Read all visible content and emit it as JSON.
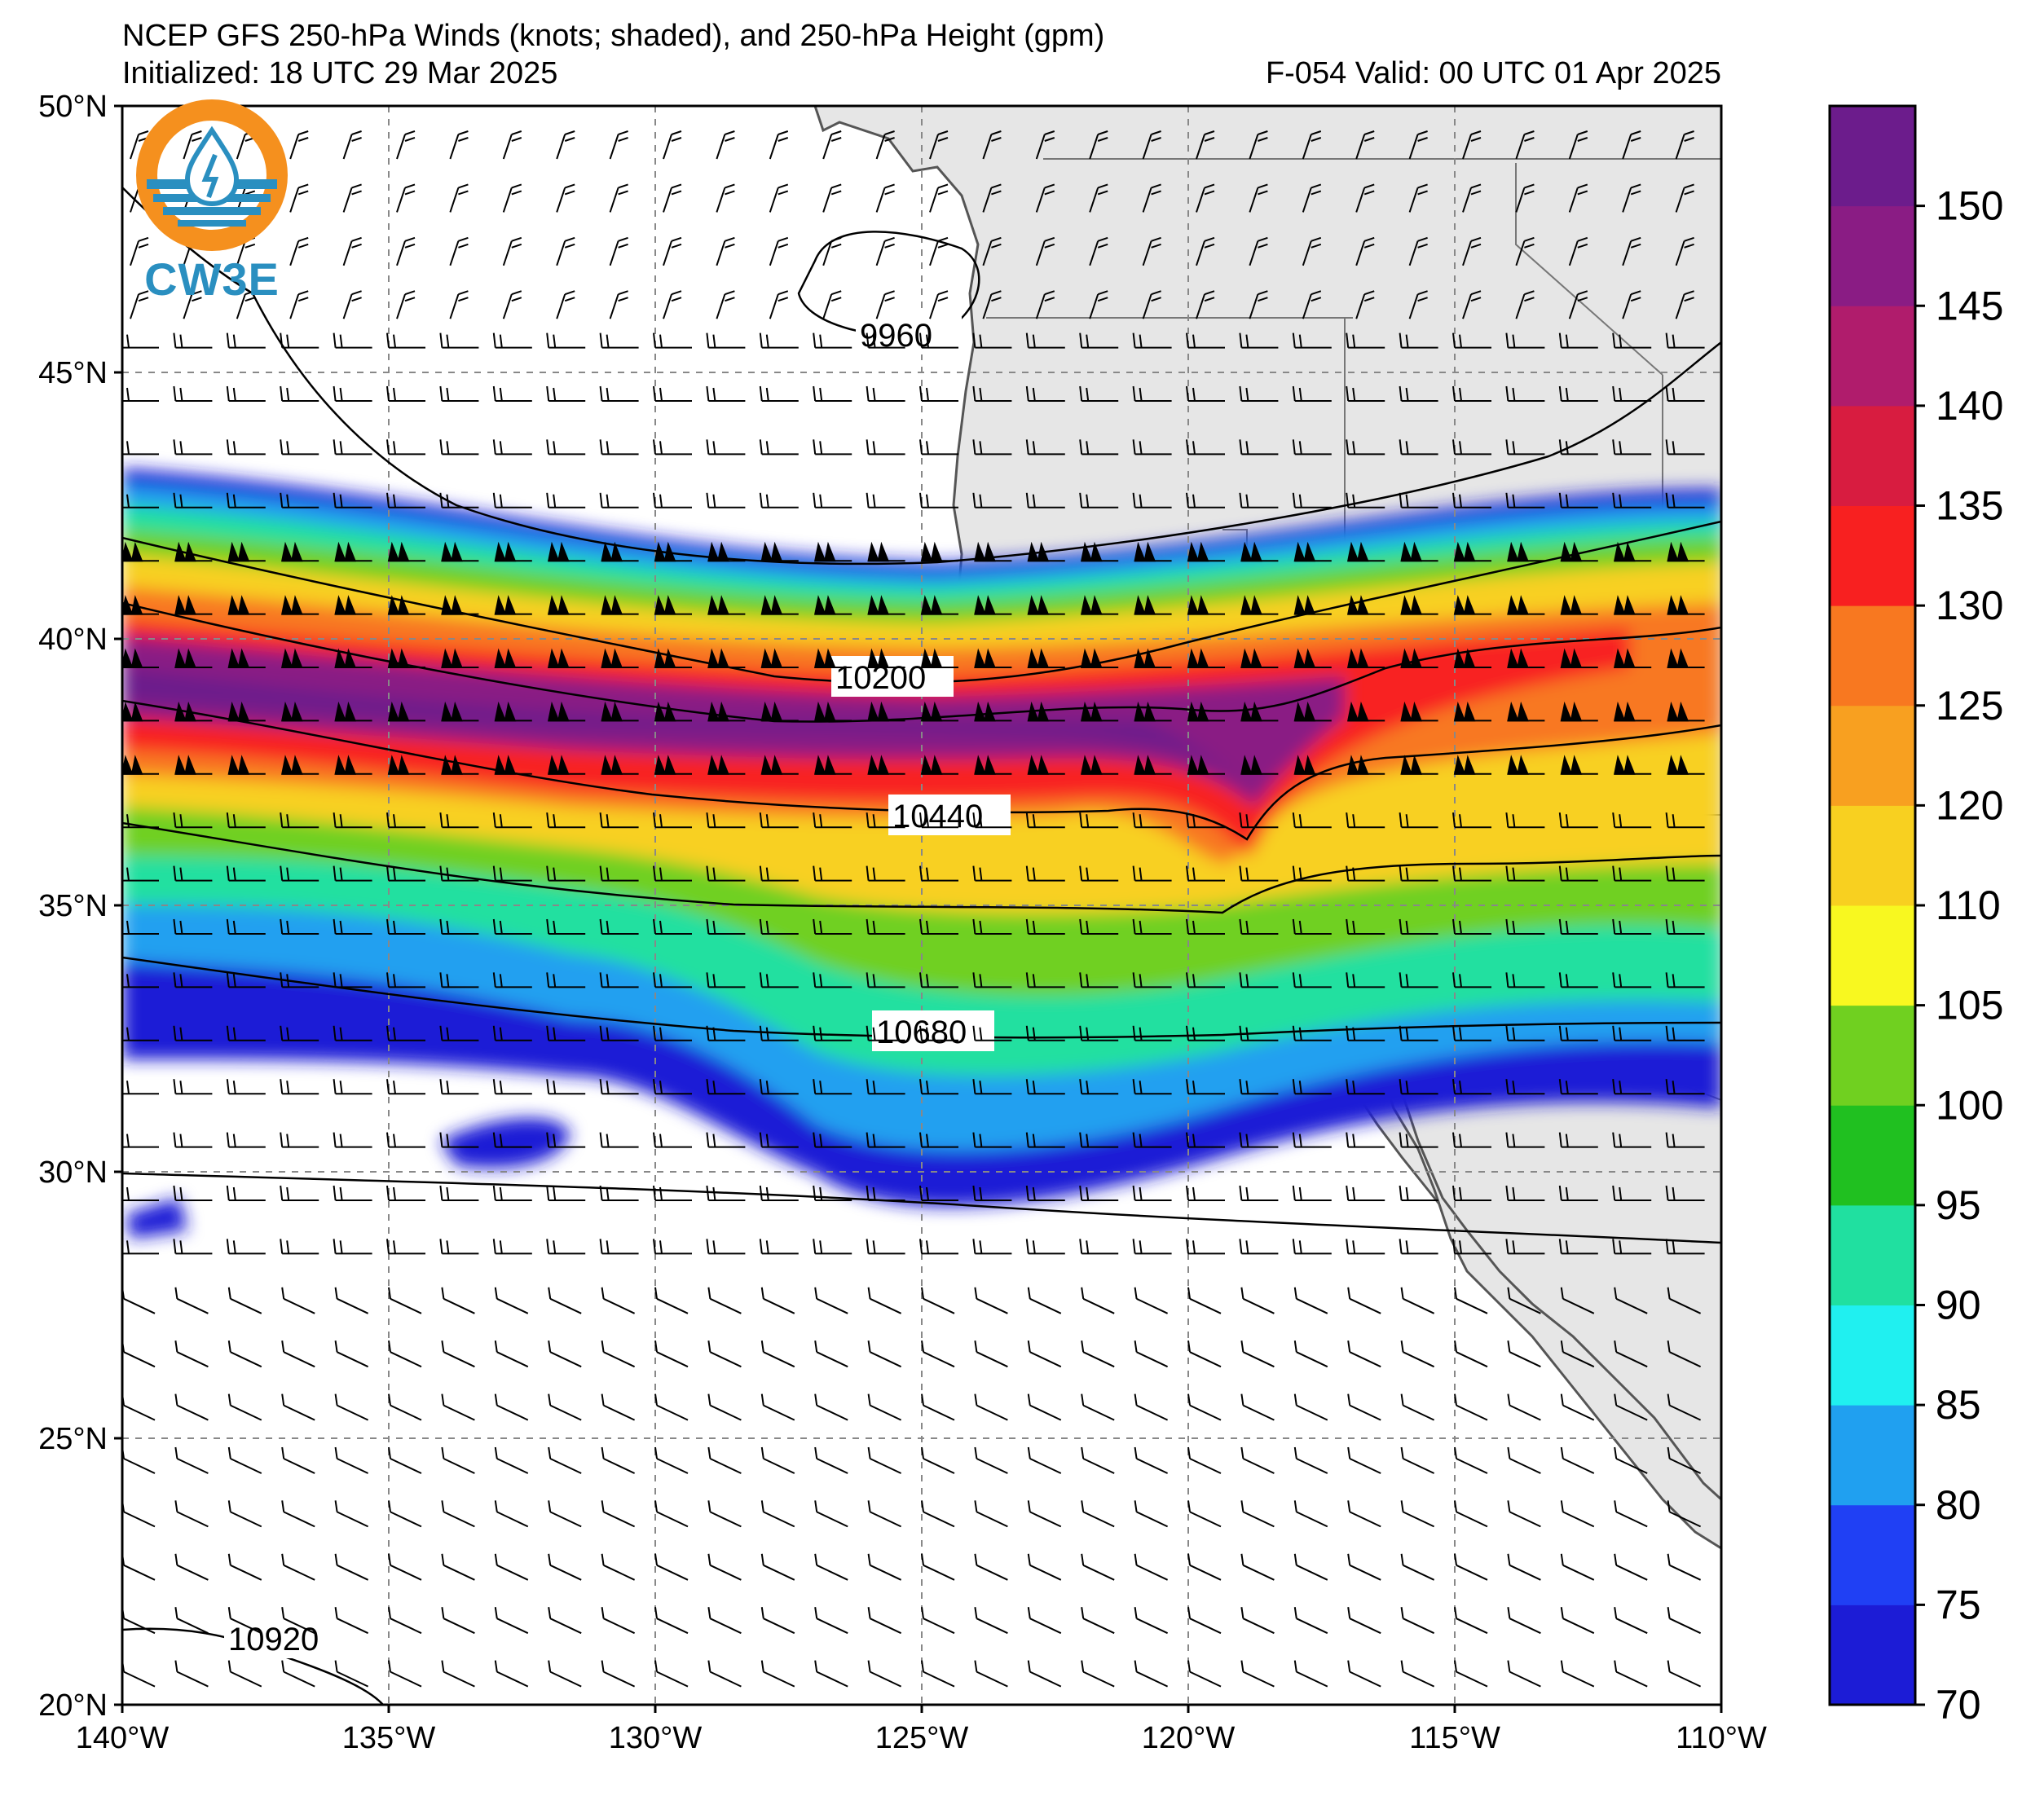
{
  "header": {
    "title": "NCEP GFS 250-hPa Winds (knots; shaded), and 250-hPa Height (gpm)",
    "initialized": "Initialized: 18 UTC 29 Mar 2025",
    "valid": "F-054  Valid: 00 UTC 01 Apr 2025"
  },
  "logo": {
    "text": "CW3E",
    "icon": "cw3e-logo-icon"
  },
  "map": {
    "projection": "lat-lon",
    "lon_range": [
      -140,
      -110
    ],
    "lat_range": [
      20,
      50
    ],
    "land_color": "#e6e6e6",
    "ocean_color": "#ffffff",
    "gridlines": "dashed",
    "lon_ticks": [
      {
        "value": -140,
        "label": "140°W"
      },
      {
        "value": -135,
        "label": "135°W"
      },
      {
        "value": -130,
        "label": "130°W"
      },
      {
        "value": -125,
        "label": "125°W"
      },
      {
        "value": -120,
        "label": "120°W"
      },
      {
        "value": -115,
        "label": "115°W"
      },
      {
        "value": -110,
        "label": "110°W"
      }
    ],
    "lat_ticks": [
      {
        "value": 20,
        "label": "20°N"
      },
      {
        "value": 25,
        "label": "25°N"
      },
      {
        "value": 30,
        "label": "30°N"
      },
      {
        "value": 35,
        "label": "35°N"
      },
      {
        "value": 40,
        "label": "40°N"
      },
      {
        "value": 45,
        "label": "45°N"
      },
      {
        "value": 50,
        "label": "50°N"
      }
    ]
  },
  "colorbar": {
    "levels": [
      70,
      75,
      80,
      85,
      90,
      95,
      100,
      105,
      110,
      120,
      125,
      130,
      135,
      140,
      145,
      150,
      155
    ],
    "labels": [
      "70",
      "75",
      "80",
      "85",
      "90",
      "95",
      "100",
      "105",
      "110",
      "120",
      "125",
      "130",
      "135",
      "140",
      "145",
      "150"
    ],
    "colors": [
      "#1c1cd6",
      "#2040f4",
      "#20a0f0",
      "#20f0f0",
      "#20e0a0",
      "#20c020",
      "#70d020",
      "#f8f820",
      "#f8d020",
      "#f8a020",
      "#f87820",
      "#f82020",
      "#d81c40",
      "#b01c6c",
      "#8a1c84",
      "#6c1c8c"
    ]
  },
  "contours": [
    {
      "value": 9960,
      "label": "9960"
    },
    {
      "value": 10200,
      "label": "10200"
    },
    {
      "value": 10440,
      "label": "10440"
    },
    {
      "value": 10680,
      "label": "10680"
    },
    {
      "value": 10920,
      "label": "10920"
    }
  ]
}
